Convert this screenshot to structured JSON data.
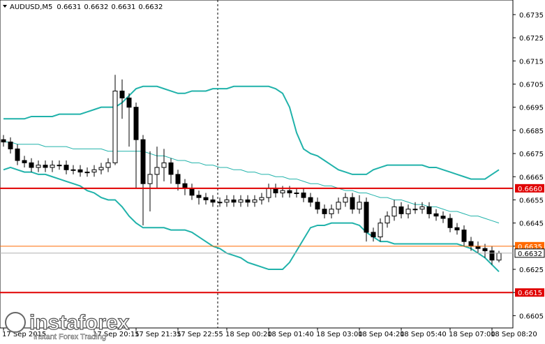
{
  "chart_data": {
    "type": "candlestick",
    "title": "AUDUSD,M5",
    "quote": [
      0.6631,
      0.6632,
      0.6631,
      0.6632
    ],
    "categories": [
      "17 Sep 2015",
      null,
      null,
      null,
      null,
      null,
      null,
      null,
      null,
      null,
      null,
      null,
      null,
      "17 Sep 20:15",
      null,
      null,
      null,
      null,
      null,
      "17 Sep 21:35",
      null,
      null,
      null,
      null,
      null,
      "17 Sep 22:55",
      null,
      null,
      null,
      null,
      null,
      null,
      "18 Sep 00:20",
      null,
      null,
      null,
      null,
      null,
      "18 Sep 01:40",
      null,
      null,
      null,
      null,
      null,
      null,
      "18 Sep 03:00",
      null,
      null,
      null,
      null,
      null,
      "18 Sep 04:20",
      null,
      null,
      null,
      null,
      null,
      "18 Sep 05:40",
      null,
      null,
      null,
      null,
      null,
      null,
      "18 Sep 07:00",
      null,
      null,
      null,
      null,
      null,
      "18 Sep 08:20",
      null
    ],
    "open": [
      0.6681,
      0.668,
      0.6677,
      0.6672,
      0.6671,
      0.6669,
      0.667,
      0.6669,
      0.667,
      0.667,
      0.6668,
      0.6668,
      0.6667,
      0.6667,
      0.6668,
      0.6669,
      0.6671,
      0.6702,
      0.6699,
      0.6695,
      0.6681,
      0.6662,
      0.6666,
      0.6669,
      0.6671,
      0.6666,
      0.6662,
      0.666,
      0.6657,
      0.6656,
      0.6655,
      0.6654,
      0.6654,
      0.6655,
      0.6654,
      0.6655,
      0.6654,
      0.6655,
      0.6656,
      0.666,
      0.6658,
      0.6659,
      0.6658,
      0.6658,
      0.6656,
      0.6654,
      0.6651,
      0.6649,
      0.6651,
      0.6654,
      0.6656,
      0.6651,
      0.6654,
      0.6641,
      0.6639,
      0.6645,
      0.6648,
      0.6652,
      0.6649,
      0.6651,
      0.6651,
      0.6652,
      0.6649,
      0.6648,
      0.6647,
      0.6643,
      0.6642,
      0.6637,
      0.6635,
      0.6634,
      0.6633,
      0.6629
    ],
    "high": [
      0.6683,
      0.6682,
      0.6679,
      0.6674,
      0.6673,
      0.6672,
      0.6672,
      0.6672,
      0.6672,
      0.6672,
      0.667,
      0.667,
      0.6669,
      0.667,
      0.6671,
      0.6673,
      0.6709,
      0.6707,
      0.6701,
      0.6697,
      0.6683,
      0.6676,
      0.6678,
      0.6677,
      0.6673,
      0.6668,
      0.6664,
      0.6662,
      0.6659,
      0.6658,
      0.6657,
      0.6656,
      0.6657,
      0.6657,
      0.6657,
      0.6657,
      0.6657,
      0.6658,
      0.6662,
      0.6662,
      0.6661,
      0.6661,
      0.666,
      0.666,
      0.6658,
      0.6656,
      0.6653,
      0.6653,
      0.6656,
      0.6658,
      0.6658,
      0.6657,
      0.6656,
      0.6643,
      0.6647,
      0.665,
      0.6655,
      0.6654,
      0.6653,
      0.6654,
      0.6654,
      0.6654,
      0.6651,
      0.665,
      0.6649,
      0.6645,
      0.6644,
      0.6639,
      0.6637,
      0.6636,
      0.6635,
      0.6633
    ],
    "low": [
      0.6678,
      0.6675,
      0.667,
      0.6669,
      0.6667,
      0.6667,
      0.6667,
      0.6667,
      0.6668,
      0.6666,
      0.6666,
      0.6665,
      0.6665,
      0.6665,
      0.6666,
      0.6667,
      0.667,
      0.669,
      0.6678,
      0.666,
      0.6644,
      0.665,
      0.666,
      0.6663,
      0.6662,
      0.6659,
      0.6657,
      0.6655,
      0.6653,
      0.6653,
      0.6652,
      0.6652,
      0.6652,
      0.6652,
      0.6652,
      0.6652,
      0.6652,
      0.6653,
      0.6654,
      0.6656,
      0.6656,
      0.6656,
      0.6656,
      0.6654,
      0.6652,
      0.6649,
      0.6647,
      0.6647,
      0.6649,
      0.6652,
      0.6649,
      0.6649,
      0.6637,
      0.6637,
      0.6637,
      0.6643,
      0.6646,
      0.6647,
      0.6647,
      0.6649,
      0.6649,
      0.6647,
      0.6646,
      0.6645,
      0.6641,
      0.664,
      0.6635,
      0.6633,
      0.6632,
      0.663,
      0.6627,
      0.6628
    ],
    "close": [
      0.668,
      0.6677,
      0.6672,
      0.6671,
      0.6669,
      0.667,
      0.6669,
      0.667,
      0.667,
      0.6668,
      0.6668,
      0.6667,
      0.6667,
      0.6668,
      0.6669,
      0.6671,
      0.6702,
      0.6699,
      0.6695,
      0.6681,
      0.6662,
      0.6666,
      0.6669,
      0.6671,
      0.6666,
      0.6662,
      0.666,
      0.6657,
      0.6656,
      0.6655,
      0.6654,
      0.6654,
      0.6655,
      0.6654,
      0.6655,
      0.6654,
      0.6655,
      0.6656,
      0.666,
      0.6658,
      0.6659,
      0.6658,
      0.6658,
      0.6656,
      0.6654,
      0.6651,
      0.6649,
      0.6651,
      0.6654,
      0.6656,
      0.6651,
      0.6654,
      0.6641,
      0.6639,
      0.6645,
      0.6648,
      0.6652,
      0.6649,
      0.6651,
      0.6651,
      0.6652,
      0.6649,
      0.6648,
      0.6647,
      0.6643,
      0.6642,
      0.6637,
      0.6635,
      0.6634,
      0.6633,
      0.6629,
      0.6632
    ],
    "up_color": "#ffffff",
    "down_color": "#000000",
    "bands": [
      {
        "color": "#20b2aa",
        "values": [
          0.669,
          0.669,
          0.669,
          0.669,
          0.6691,
          0.6691,
          0.6691,
          0.6691,
          0.6692,
          0.6692,
          0.6692,
          0.6692,
          0.6693,
          0.6694,
          0.6695,
          0.6695,
          0.6695,
          0.6697,
          0.67,
          0.6703,
          0.6704,
          0.6704,
          0.6704,
          0.6703,
          0.6702,
          0.6701,
          0.6701,
          0.6702,
          0.6702,
          0.6702,
          0.6703,
          0.6703,
          0.6703,
          0.6704,
          0.6704,
          0.6704,
          0.6704,
          0.6704,
          0.6704,
          0.6703,
          0.6701,
          0.6695,
          0.6684,
          0.6677,
          0.6675,
          0.6674,
          0.6672,
          0.667,
          0.6668,
          0.6667,
          0.6666,
          0.6666,
          0.6666,
          0.6668,
          0.6669,
          0.667,
          0.667,
          0.667,
          0.667,
          0.667,
          0.667,
          0.6669,
          0.6669,
          0.6668,
          0.6667,
          0.6666,
          0.6665,
          0.6664,
          0.6664,
          0.6664,
          0.6666,
          0.6668
        ]
      },
      {
        "color": "#20b2aa",
        "values": [
          0.668,
          0.668,
          0.6679,
          0.6679,
          0.6679,
          0.6679,
          0.6678,
          0.6678,
          0.6678,
          0.6678,
          0.6677,
          0.6677,
          0.6677,
          0.6677,
          0.6677,
          0.6676,
          0.6676,
          0.6676,
          0.6676,
          0.6676,
          0.6676,
          0.6675,
          0.6674,
          0.6674,
          0.6673,
          0.6672,
          0.6672,
          0.6671,
          0.6671,
          0.667,
          0.667,
          0.6669,
          0.6669,
          0.6668,
          0.6668,
          0.6667,
          0.6667,
          0.6666,
          0.6666,
          0.6665,
          0.6665,
          0.6664,
          0.6664,
          0.6663,
          0.6662,
          0.6662,
          0.6661,
          0.6661,
          0.666,
          0.6659,
          0.6659,
          0.6658,
          0.6658,
          0.6657,
          0.6656,
          0.6656,
          0.6655,
          0.6655,
          0.6654,
          0.6653,
          0.6653,
          0.6652,
          0.6652,
          0.6651,
          0.665,
          0.665,
          0.6649,
          0.6648,
          0.6648,
          0.6647,
          0.6646,
          0.6645
        ]
      },
      {
        "color": "#20b2aa",
        "values": [
          0.6668,
          0.6669,
          0.6668,
          0.6667,
          0.6667,
          0.6666,
          0.6666,
          0.6665,
          0.6664,
          0.6663,
          0.6662,
          0.6661,
          0.6659,
          0.6658,
          0.6656,
          0.6655,
          0.6655,
          0.6652,
          0.6648,
          0.6645,
          0.6643,
          0.6643,
          0.6643,
          0.6643,
          0.6642,
          0.6642,
          0.6642,
          0.6641,
          0.6639,
          0.6637,
          0.6635,
          0.6634,
          0.6632,
          0.6631,
          0.663,
          0.6628,
          0.6627,
          0.6626,
          0.6625,
          0.6625,
          0.6625,
          0.6628,
          0.6633,
          0.6638,
          0.6643,
          0.6644,
          0.6644,
          0.6645,
          0.6645,
          0.6645,
          0.6645,
          0.6644,
          0.6641,
          0.6639,
          0.6637,
          0.6637,
          0.6636,
          0.6636,
          0.6636,
          0.6636,
          0.6636,
          0.6636,
          0.6636,
          0.6636,
          0.6636,
          0.6636,
          0.6635,
          0.6634,
          0.6632,
          0.663,
          0.6627,
          0.6624
        ]
      }
    ],
    "ylim": [
      0.66003,
      0.67413
    ],
    "yticks": [
      0.6735,
      0.6725,
      0.6715,
      0.6705,
      0.6695,
      0.6685,
      0.6675,
      0.6665,
      0.6655,
      0.6645,
      0.6635,
      0.6625,
      0.6615,
      0.6605
    ],
    "levels": [
      {
        "value": 0.666,
        "label": "0.6660",
        "color": "#e00000"
      },
      {
        "value": 0.6615,
        "label": "0.6615",
        "color": "#e00000"
      },
      {
        "value": 0.6635,
        "label": "0.6635",
        "color": "#ff6a00"
      }
    ],
    "current_price": 0.6632
  },
  "watermark": {
    "brand": "instaforex",
    "tagline": "Instant Forex Trading"
  }
}
